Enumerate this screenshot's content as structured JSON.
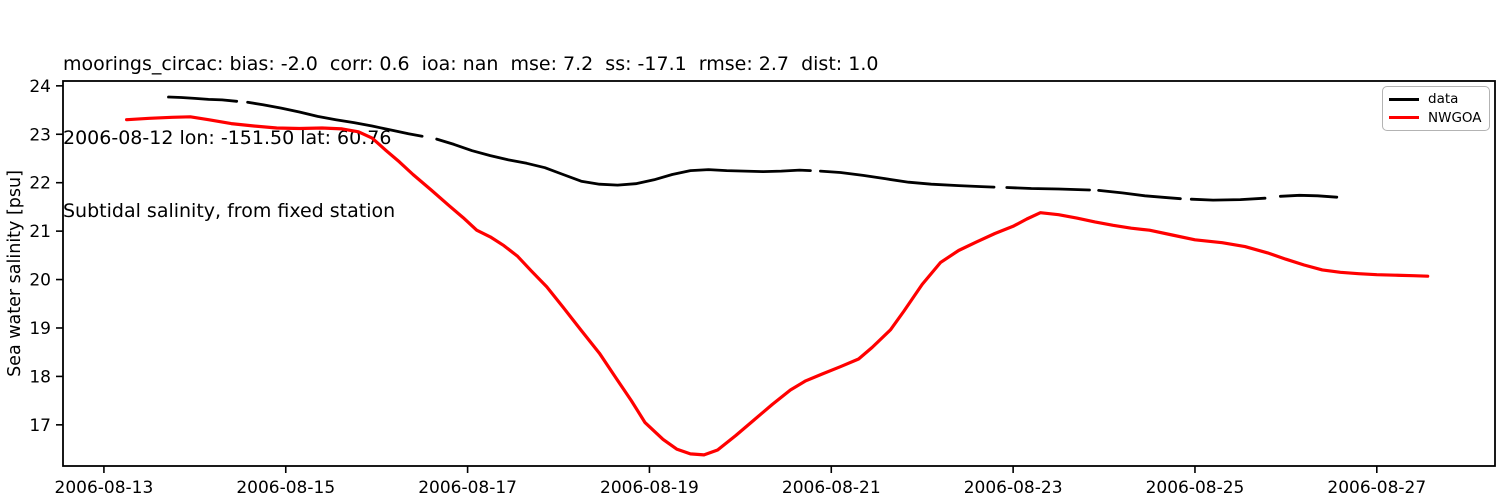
{
  "header": {
    "title_lines": [
      "moorings_circac: bias: -2.0  corr: 0.6  ioa: nan  mse: 7.2  ss: -17.1  rmse: 2.7  dist: 1.0",
      "2006-08-12 lon: -151.50 lat: 60.76",
      "Subtidal salinity, from fixed station"
    ]
  },
  "chart_data": {
    "type": "line",
    "title": "Subtidal salinity, from fixed station",
    "xlabel": "",
    "ylabel": "Sea water salinity [psu]",
    "x_axis": {
      "unit": "day of August 2006",
      "xlim_days": [
        12.55,
        28.3
      ],
      "tick_days": [
        13,
        15,
        17,
        19,
        21,
        23,
        25,
        27
      ],
      "tick_labels": [
        "2006-08-13",
        "2006-08-15",
        "2006-08-17",
        "2006-08-19",
        "2006-08-21",
        "2006-08-23",
        "2006-08-25",
        "2006-08-27"
      ]
    },
    "y_axis": {
      "ylim": [
        16.15,
        24.1
      ],
      "ticks": [
        17,
        18,
        19,
        20,
        21,
        22,
        23,
        24
      ],
      "tick_labels": [
        "17",
        "18",
        "19",
        "20",
        "21",
        "22",
        "23",
        "24"
      ]
    },
    "grid": false,
    "legend": {
      "location": "upper right",
      "entries": [
        {
          "label": "data",
          "color": "#000000"
        },
        {
          "label": "NWGOA",
          "color": "#ff0000"
        }
      ]
    },
    "series": [
      {
        "name": "data",
        "color": "#000000",
        "line_width": 2.8,
        "x_unit": "day_of_august_2006",
        "segments": [
          [
            [
              13.71,
              23.77
            ],
            [
              13.85,
              23.76
            ],
            [
              14.0,
              23.74
            ],
            [
              14.15,
              23.72
            ],
            [
              14.3,
              23.71
            ],
            [
              14.46,
              23.68
            ]
          ],
          [
            [
              14.58,
              23.66
            ],
            [
              14.75,
              23.61
            ],
            [
              14.95,
              23.54
            ],
            [
              15.15,
              23.46
            ],
            [
              15.35,
              23.37
            ],
            [
              15.55,
              23.3
            ],
            [
              15.75,
              23.24
            ],
            [
              15.95,
              23.17
            ],
            [
              16.15,
              23.09
            ],
            [
              16.35,
              23.01
            ],
            [
              16.5,
              22.96
            ]
          ],
          [
            [
              16.66,
              22.9
            ],
            [
              16.85,
              22.79
            ],
            [
              17.05,
              22.66
            ],
            [
              17.25,
              22.56
            ],
            [
              17.45,
              22.47
            ],
            [
              17.65,
              22.4
            ],
            [
              17.85,
              22.31
            ],
            [
              18.05,
              22.17
            ],
            [
              18.25,
              22.03
            ],
            [
              18.45,
              21.97
            ],
            [
              18.65,
              21.95
            ],
            [
              18.85,
              21.98
            ],
            [
              19.05,
              22.06
            ],
            [
              19.25,
              22.17
            ],
            [
              19.45,
              22.25
            ],
            [
              19.65,
              22.27
            ],
            [
              19.85,
              22.25
            ],
            [
              20.05,
              22.24
            ],
            [
              20.25,
              22.23
            ],
            [
              20.45,
              22.24
            ],
            [
              20.65,
              22.26
            ],
            [
              20.77,
              22.25
            ]
          ],
          [
            [
              20.88,
              22.24
            ],
            [
              21.1,
              22.21
            ],
            [
              21.35,
              22.15
            ],
            [
              21.6,
              22.08
            ],
            [
              21.85,
              22.01
            ],
            [
              22.1,
              21.97
            ],
            [
              22.4,
              21.94
            ],
            [
              22.65,
              21.92
            ],
            [
              22.79,
              21.91
            ]
          ],
          [
            [
              22.93,
              21.9
            ],
            [
              23.2,
              21.88
            ],
            [
              23.5,
              21.87
            ],
            [
              23.84,
              21.85
            ]
          ],
          [
            [
              23.94,
              21.84
            ],
            [
              24.2,
              21.79
            ],
            [
              24.45,
              21.73
            ],
            [
              24.7,
              21.69
            ],
            [
              24.84,
              21.67
            ]
          ],
          [
            [
              24.96,
              21.66
            ],
            [
              25.2,
              21.64
            ],
            [
              25.5,
              21.65
            ],
            [
              25.77,
              21.68
            ]
          ],
          [
            [
              25.94,
              21.72
            ],
            [
              26.15,
              21.74
            ],
            [
              26.35,
              21.73
            ],
            [
              26.56,
              21.7
            ]
          ]
        ]
      },
      {
        "name": "NWGOA",
        "color": "#ff0000",
        "line_width": 3.2,
        "x_unit": "day_of_august_2006",
        "segments": [
          [
            [
              13.25,
              23.3
            ],
            [
              13.5,
              23.33
            ],
            [
              13.75,
              23.35
            ],
            [
              13.95,
              23.36
            ],
            [
              14.15,
              23.3
            ],
            [
              14.4,
              23.22
            ],
            [
              14.65,
              23.17
            ],
            [
              14.9,
              23.13
            ],
            [
              15.15,
              23.12
            ],
            [
              15.4,
              23.13
            ],
            [
              15.62,
              23.11
            ],
            [
              15.8,
              23.05
            ],
            [
              15.95,
              22.92
            ],
            [
              16.1,
              22.67
            ],
            [
              16.25,
              22.43
            ],
            [
              16.4,
              22.17
            ],
            [
              16.6,
              21.85
            ],
            [
              16.8,
              21.52
            ],
            [
              16.95,
              21.28
            ],
            [
              17.1,
              21.02
            ],
            [
              17.25,
              20.88
            ],
            [
              17.4,
              20.7
            ],
            [
              17.55,
              20.48
            ],
            [
              17.7,
              20.18
            ],
            [
              17.87,
              19.85
            ],
            [
              18.05,
              19.43
            ],
            [
              18.25,
              18.95
            ],
            [
              18.45,
              18.48
            ],
            [
              18.62,
              18.0
            ],
            [
              18.8,
              17.5
            ],
            [
              18.95,
              17.05
            ],
            [
              19.15,
              16.7
            ],
            [
              19.3,
              16.5
            ],
            [
              19.45,
              16.4
            ],
            [
              19.6,
              16.38
            ],
            [
              19.75,
              16.48
            ],
            [
              19.95,
              16.78
            ],
            [
              20.15,
              17.1
            ],
            [
              20.35,
              17.42
            ],
            [
              20.55,
              17.72
            ],
            [
              20.72,
              17.91
            ],
            [
              20.9,
              18.05
            ],
            [
              21.1,
              18.2
            ],
            [
              21.3,
              18.36
            ],
            [
              21.45,
              18.6
            ],
            [
              21.65,
              18.96
            ],
            [
              21.8,
              19.35
            ],
            [
              22.0,
              19.9
            ],
            [
              22.2,
              20.35
            ],
            [
              22.4,
              20.6
            ],
            [
              22.6,
              20.78
            ],
            [
              22.8,
              20.95
            ],
            [
              23.0,
              21.1
            ],
            [
              23.15,
              21.25
            ],
            [
              23.3,
              21.38
            ],
            [
              23.5,
              21.34
            ],
            [
              23.7,
              21.27
            ],
            [
              23.9,
              21.19
            ],
            [
              24.1,
              21.12
            ],
            [
              24.3,
              21.06
            ],
            [
              24.5,
              21.02
            ],
            [
              24.75,
              20.92
            ],
            [
              25.0,
              20.82
            ],
            [
              25.3,
              20.76
            ],
            [
              25.55,
              20.68
            ],
            [
              25.8,
              20.55
            ],
            [
              26.0,
              20.42
            ],
            [
              26.2,
              20.3
            ],
            [
              26.4,
              20.2
            ],
            [
              26.6,
              20.15
            ],
            [
              26.8,
              20.12
            ],
            [
              27.0,
              20.1
            ],
            [
              27.2,
              20.09
            ],
            [
              27.4,
              20.08
            ],
            [
              27.56,
              20.07
            ]
          ]
        ]
      }
    ]
  },
  "colors": {
    "background": "#ffffff",
    "axis": "#000000",
    "tick_text": "#000000",
    "legend_border": "#b3b3b3"
  }
}
